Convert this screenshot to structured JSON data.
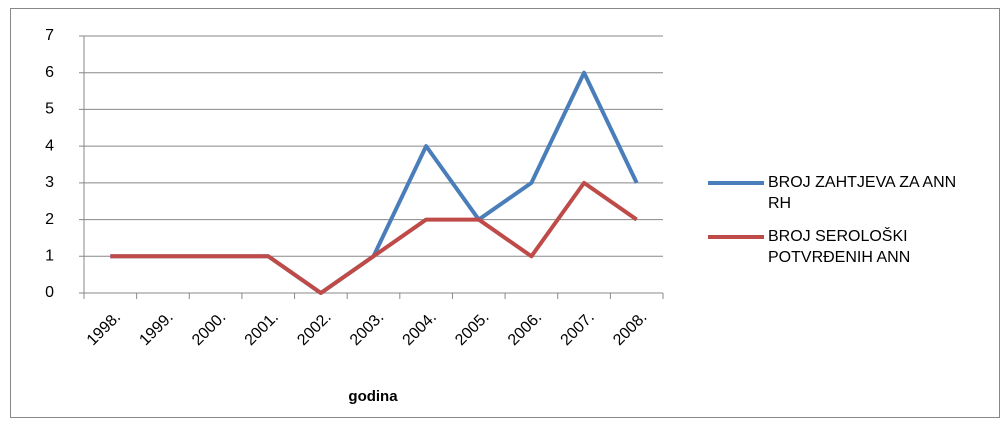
{
  "chart_data": {
    "type": "line",
    "categories": [
      "1998.",
      "1999.",
      "2000.",
      "2001.",
      "2002.",
      "2003.",
      "2004.",
      "2005.",
      "2006.",
      "2007.",
      "2008."
    ],
    "series": [
      {
        "name": "BROJ ZAHTJEVA ZA ANN RH",
        "color": "#4a7ebb",
        "values": [
          1,
          1,
          1,
          1,
          0,
          1,
          4,
          2,
          3,
          6,
          3
        ]
      },
      {
        "name": "BROJ SEROLOŠKI POTVRĐENIH ANN",
        "color": "#be4b48",
        "values": [
          1,
          1,
          1,
          1,
          0,
          1,
          2,
          2,
          1,
          3,
          2
        ]
      }
    ],
    "x_label": "godina",
    "ylim": [
      0,
      7
    ],
    "yticks": [
      0,
      1,
      2,
      3,
      4,
      5,
      6,
      7
    ],
    "grid": true,
    "legend": "right"
  }
}
